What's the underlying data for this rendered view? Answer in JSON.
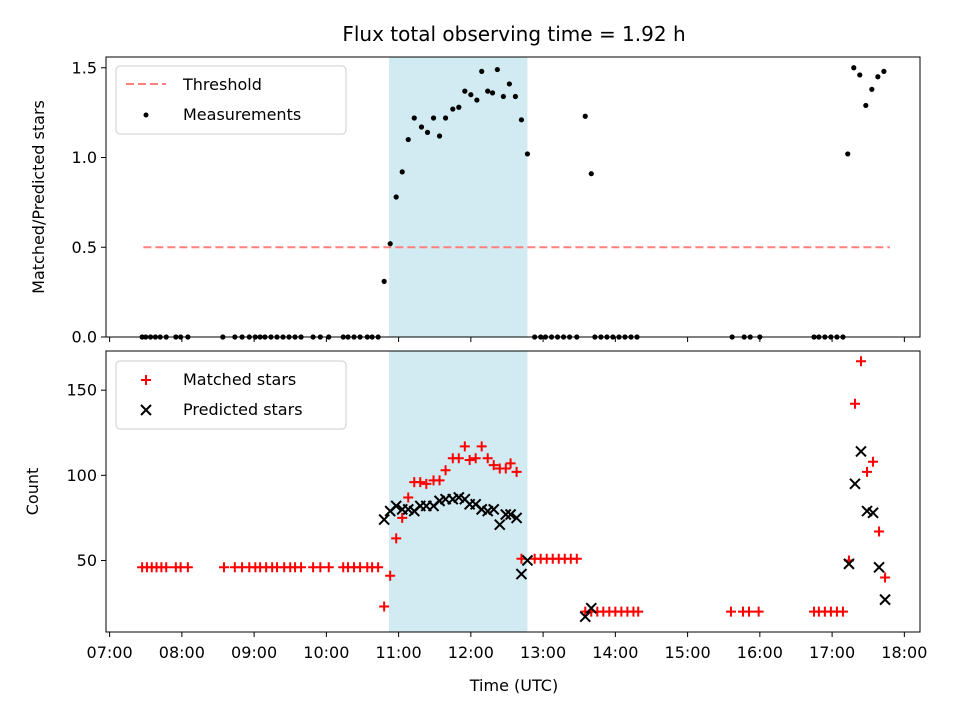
{
  "chart_data": {
    "title": "Flux total observing time = 1.92 h",
    "xlabel": "Time (UTC)",
    "x_ticks": [
      "07:00",
      "08:00",
      "09:00",
      "10:00",
      "11:00",
      "12:00",
      "13:00",
      "14:00",
      "15:00",
      "16:00",
      "17:00",
      "18:00"
    ],
    "xlim": [
      "06:57",
      "18:13"
    ],
    "highlight_span": [
      "10:52",
      "12:47"
    ],
    "highlight_color": "#add8e6",
    "panels": [
      {
        "type": "scatter",
        "ylabel": "Matched/Predicted stars",
        "ylim": [
          0,
          1.56
        ],
        "y_ticks": [
          "0.0",
          "0.5",
          "1.0",
          "1.5"
        ],
        "legend_position": "upper left",
        "threshold": {
          "name": "Threshold",
          "value": 0.5,
          "x_range": [
            "07:28",
            "17:48"
          ],
          "color": "#ff7f7f"
        },
        "series": [
          {
            "name": "Measurements",
            "color": "#000000",
            "marker": "dot",
            "points": [
              [
                "07:27",
                0
              ],
              [
                "07:30",
                0
              ],
              [
                "07:34",
                0
              ],
              [
                "07:38",
                0
              ],
              [
                "07:42",
                0
              ],
              [
                "07:47",
                0
              ],
              [
                "07:55",
                0
              ],
              [
                "07:59",
                0
              ],
              [
                "08:05",
                0
              ],
              [
                "08:34",
                0
              ],
              [
                "08:44",
                0
              ],
              [
                "08:50",
                0
              ],
              [
                "08:56",
                0
              ],
              [
                "09:01",
                0
              ],
              [
                "09:05",
                0
              ],
              [
                "09:09",
                0
              ],
              [
                "09:14",
                0
              ],
              [
                "09:19",
                0
              ],
              [
                "09:24",
                0
              ],
              [
                "09:29",
                0
              ],
              [
                "09:34",
                0
              ],
              [
                "09:39",
                0
              ],
              [
                "09:49",
                0
              ],
              [
                "09:55",
                0
              ],
              [
                "10:02",
                0
              ],
              [
                "10:14",
                0
              ],
              [
                "10:18",
                0
              ],
              [
                "10:23",
                0
              ],
              [
                "10:28",
                0
              ],
              [
                "10:34",
                0
              ],
              [
                "10:38",
                0
              ],
              [
                "10:43",
                0
              ],
              [
                "10:48",
                0.31
              ],
              [
                "10:53",
                0.52
              ],
              [
                "10:58",
                0.78
              ],
              [
                "11:03",
                0.92
              ],
              [
                "11:08",
                1.1
              ],
              [
                "11:13",
                1.22
              ],
              [
                "11:19",
                1.17
              ],
              [
                "11:24",
                1.14
              ],
              [
                "11:29",
                1.22
              ],
              [
                "11:34",
                1.12
              ],
              [
                "11:39",
                1.22
              ],
              [
                "11:45",
                1.27
              ],
              [
                "11:50",
                1.28
              ],
              [
                "11:55",
                1.37
              ],
              [
                "12:00",
                1.35
              ],
              [
                "12:05",
                1.32
              ],
              [
                "12:09",
                1.48
              ],
              [
                "12:14",
                1.37
              ],
              [
                "12:18",
                1.36
              ],
              [
                "12:22",
                1.49
              ],
              [
                "12:27",
                1.34
              ],
              [
                "12:32",
                1.41
              ],
              [
                "12:37",
                1.34
              ],
              [
                "12:42",
                1.21
              ],
              [
                "12:47",
                1.02
              ],
              [
                "12:53",
                0
              ],
              [
                "12:58",
                0
              ],
              [
                "13:02",
                0
              ],
              [
                "13:07",
                0
              ],
              [
                "13:12",
                0
              ],
              [
                "13:17",
                0
              ],
              [
                "13:22",
                0
              ],
              [
                "13:28",
                0
              ],
              [
                "13:35",
                1.23
              ],
              [
                "13:40",
                0.91
              ],
              [
                "13:43",
                0
              ],
              [
                "13:48",
                0
              ],
              [
                "13:53",
                0
              ],
              [
                "13:58",
                0
              ],
              [
                "14:03",
                0
              ],
              [
                "14:08",
                0
              ],
              [
                "14:13",
                0
              ],
              [
                "14:18",
                0
              ],
              [
                "15:37",
                0
              ],
              [
                "15:47",
                0
              ],
              [
                "15:52",
                0
              ],
              [
                "16:00",
                0
              ],
              [
                "16:45",
                0
              ],
              [
                "16:49",
                0
              ],
              [
                "16:54",
                0
              ],
              [
                "16:59",
                0
              ],
              [
                "17:04",
                0
              ],
              [
                "17:09",
                0
              ],
              [
                "17:13",
                1.02
              ],
              [
                "17:18",
                1.5
              ],
              [
                "17:23",
                1.46
              ],
              [
                "17:28",
                1.29
              ],
              [
                "17:33",
                1.38
              ],
              [
                "17:38",
                1.45
              ],
              [
                "17:43",
                1.48
              ]
            ]
          }
        ]
      },
      {
        "type": "scatter",
        "ylabel": "Count",
        "ylim": [
          8,
          173
        ],
        "y_ticks": [
          "50",
          "100",
          "150"
        ],
        "legend_position": "upper left",
        "series": [
          {
            "name": "Matched stars",
            "color": "#ff0000",
            "marker": "plus",
            "points": [
              [
                "07:27",
                46
              ],
              [
                "07:31",
                46
              ],
              [
                "07:35",
                46
              ],
              [
                "07:39",
                46
              ],
              [
                "07:43",
                46
              ],
              [
                "07:47",
                46
              ],
              [
                "07:55",
                46
              ],
              [
                "07:59",
                46
              ],
              [
                "08:05",
                46
              ],
              [
                "08:35",
                46
              ],
              [
                "08:44",
                46
              ],
              [
                "08:50",
                46
              ],
              [
                "08:56",
                46
              ],
              [
                "09:01",
                46
              ],
              [
                "09:05",
                46
              ],
              [
                "09:10",
                46
              ],
              [
                "09:15",
                46
              ],
              [
                "09:19",
                46
              ],
              [
                "09:25",
                46
              ],
              [
                "09:30",
                46
              ],
              [
                "09:34",
                46
              ],
              [
                "09:39",
                46
              ],
              [
                "09:49",
                46
              ],
              [
                "09:55",
                46
              ],
              [
                "10:02",
                46
              ],
              [
                "10:14",
                46
              ],
              [
                "10:18",
                46
              ],
              [
                "10:23",
                46
              ],
              [
                "10:28",
                46
              ],
              [
                "10:34",
                46
              ],
              [
                "10:38",
                46
              ],
              [
                "10:43",
                46
              ],
              [
                "10:48",
                23
              ],
              [
                "10:53",
                41
              ],
              [
                "10:58",
                63
              ],
              [
                "11:03",
                75
              ],
              [
                "11:08",
                87
              ],
              [
                "11:13",
                96
              ],
              [
                "11:18",
                96
              ],
              [
                "11:23",
                95
              ],
              [
                "11:29",
                97
              ],
              [
                "11:34",
                97
              ],
              [
                "11:39",
                103
              ],
              [
                "11:45",
                110
              ],
              [
                "11:50",
                110
              ],
              [
                "11:55",
                117
              ],
              [
                "11:59",
                109
              ],
              [
                "12:04",
                110
              ],
              [
                "12:09",
                117
              ],
              [
                "12:14",
                110
              ],
              [
                "12:19",
                106
              ],
              [
                "12:24",
                104
              ],
              [
                "12:29",
                104
              ],
              [
                "12:33",
                107
              ],
              [
                "12:38",
                102
              ],
              [
                "12:42",
                51
              ],
              [
                "12:53",
                51
              ],
              [
                "12:58",
                51
              ],
              [
                "13:03",
                51
              ],
              [
                "13:08",
                51
              ],
              [
                "13:13",
                51
              ],
              [
                "13:18",
                51
              ],
              [
                "13:23",
                51
              ],
              [
                "13:28",
                51
              ],
              [
                "13:35",
                20
              ],
              [
                "13:40",
                20
              ],
              [
                "13:45",
                20
              ],
              [
                "13:50",
                20
              ],
              [
                "13:55",
                20
              ],
              [
                "14:00",
                20
              ],
              [
                "14:05",
                20
              ],
              [
                "14:10",
                20
              ],
              [
                "14:15",
                20
              ],
              [
                "14:19",
                20
              ],
              [
                "15:36",
                20
              ],
              [
                "15:46",
                20
              ],
              [
                "15:51",
                20
              ],
              [
                "15:59",
                20
              ],
              [
                "16:45",
                20
              ],
              [
                "16:49",
                20
              ],
              [
                "16:54",
                20
              ],
              [
                "16:59",
                20
              ],
              [
                "17:04",
                20
              ],
              [
                "17:09",
                20
              ],
              [
                "17:14",
                50
              ],
              [
                "17:19",
                142
              ],
              [
                "17:24",
                167
              ],
              [
                "17:29",
                102
              ],
              [
                "17:34",
                108
              ],
              [
                "17:39",
                67
              ],
              [
                "17:44",
                40
              ]
            ]
          },
          {
            "name": "Predicted stars",
            "color": "#000000",
            "marker": "x",
            "points": [
              [
                "10:48",
                74
              ],
              [
                "10:53",
                79
              ],
              [
                "10:58",
                82
              ],
              [
                "11:03",
                80
              ],
              [
                "11:08",
                80
              ],
              [
                "11:13",
                79
              ],
              [
                "11:18",
                82
              ],
              [
                "11:23",
                82
              ],
              [
                "11:29",
                82
              ],
              [
                "11:34",
                85
              ],
              [
                "11:39",
                86
              ],
              [
                "11:45",
                86
              ],
              [
                "11:50",
                87
              ],
              [
                "11:55",
                86
              ],
              [
                "11:59",
                83
              ],
              [
                "12:04",
                83
              ],
              [
                "12:09",
                80
              ],
              [
                "12:14",
                79
              ],
              [
                "12:19",
                80
              ],
              [
                "12:24",
                71
              ],
              [
                "12:29",
                77
              ],
              [
                "12:33",
                77
              ],
              [
                "12:38",
                75
              ],
              [
                "12:42",
                42
              ],
              [
                "12:47",
                50
              ],
              [
                "13:35",
                17
              ],
              [
                "13:40",
                22
              ],
              [
                "17:14",
                48
              ],
              [
                "17:19",
                95
              ],
              [
                "17:24",
                114
              ],
              [
                "17:29",
                79
              ],
              [
                "17:34",
                78
              ],
              [
                "17:39",
                46
              ],
              [
                "17:44",
                27
              ]
            ]
          }
        ]
      }
    ]
  }
}
